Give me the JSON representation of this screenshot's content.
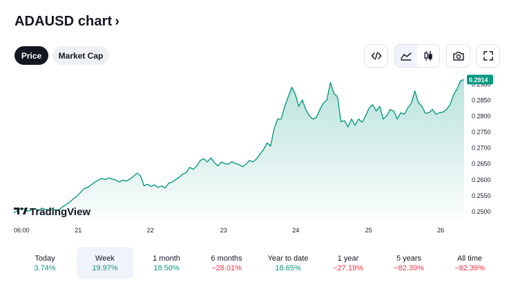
{
  "header": {
    "title": "ADAUSD chart",
    "chevron": "›"
  },
  "tabs": [
    {
      "label": "Price",
      "active": true
    },
    {
      "label": "Market Cap",
      "active": false
    }
  ],
  "toolbar": {
    "embed_icon": "code-icon",
    "area_icon": "area-chart-icon",
    "candle_icon": "candlestick-icon",
    "snapshot_icon": "camera-icon",
    "fullscreen_icon": "fullscreen-icon"
  },
  "chart_data": {
    "type": "area",
    "symbol": "ADAUSD",
    "x_ticks": [
      "06:00",
      "21",
      "22",
      "23",
      "24",
      "25",
      "26"
    ],
    "y_ticks": [
      "0.2500",
      "0.2550",
      "0.2600",
      "0.2650",
      "0.2700",
      "0.2750",
      "0.2800",
      "0.2850",
      "0.2900"
    ],
    "ylim": [
      0.2475,
      0.293
    ],
    "last_price": "0.2914",
    "series": [
      {
        "name": "ADAUSD",
        "values": [
          0.2495,
          0.2502,
          0.251,
          0.2507,
          0.25,
          0.2505,
          0.2508,
          0.2503,
          0.251,
          0.2506,
          0.2505,
          0.2508,
          0.2503,
          0.2506,
          0.2515,
          0.2522,
          0.253,
          0.254,
          0.2548,
          0.256,
          0.2572,
          0.2575,
          0.2583,
          0.2592,
          0.2598,
          0.2603,
          0.26,
          0.2605,
          0.2601,
          0.2598,
          0.2592,
          0.2598,
          0.2595,
          0.2601,
          0.261,
          0.262,
          0.2612,
          0.258,
          0.2585,
          0.2578,
          0.2583,
          0.2575,
          0.258,
          0.2573,
          0.2588,
          0.2592,
          0.26,
          0.2607,
          0.2617,
          0.2622,
          0.2638,
          0.2632,
          0.2642,
          0.266,
          0.2665,
          0.2655,
          0.2668,
          0.2653,
          0.2643,
          0.2655,
          0.265,
          0.2648,
          0.2656,
          0.265,
          0.2647,
          0.264,
          0.2648,
          0.266,
          0.2655,
          0.2665,
          0.268,
          0.2695,
          0.2715,
          0.2705,
          0.276,
          0.279,
          0.279,
          0.283,
          0.286,
          0.289,
          0.2868,
          0.283,
          0.285,
          0.282,
          0.28,
          0.279,
          0.2795,
          0.282,
          0.284,
          0.285,
          0.2905,
          0.287,
          0.286,
          0.2782,
          0.2785,
          0.2765,
          0.279,
          0.277,
          0.279,
          0.278,
          0.28,
          0.2825,
          0.2835,
          0.2815,
          0.283,
          0.279,
          0.28,
          0.282,
          0.2815,
          0.279,
          0.281,
          0.2805,
          0.2825,
          0.284,
          0.2878,
          0.2842,
          0.283,
          0.2808,
          0.281,
          0.282,
          0.2805,
          0.281,
          0.2812,
          0.282,
          0.2835,
          0.2866,
          0.2885,
          0.291,
          0.2914
        ]
      }
    ]
  },
  "watermark": {
    "text": "TradingView"
  },
  "periods": [
    {
      "label": "Today",
      "value": "3.74%",
      "dir": "up",
      "selected": false
    },
    {
      "label": "Week",
      "value": "19.97%",
      "dir": "up",
      "selected": true
    },
    {
      "label": "1 month",
      "value": "18.50%",
      "dir": "up",
      "selected": false
    },
    {
      "label": "6 months",
      "value": "−28.01%",
      "dir": "down",
      "selected": false
    },
    {
      "label": "Year to date",
      "value": "18.65%",
      "dir": "up",
      "selected": false
    },
    {
      "label": "1 year",
      "value": "−27.19%",
      "dir": "down",
      "selected": false
    },
    {
      "label": "5 years",
      "value": "−82.39%",
      "dir": "down",
      "selected": false
    },
    {
      "label": "All time",
      "value": "−82.39%",
      "dir": "down",
      "selected": false
    }
  ],
  "colors": {
    "line": "#089981",
    "up": "#089981",
    "down": "#f23645"
  }
}
